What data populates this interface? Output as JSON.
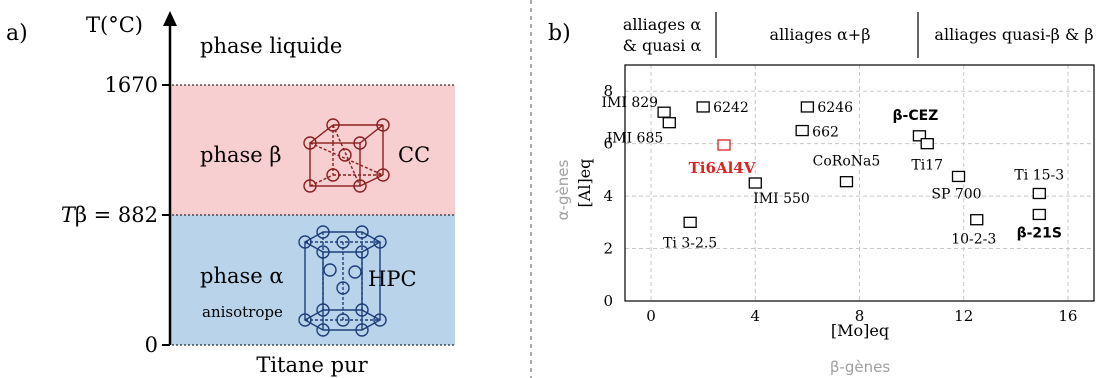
{
  "left": {
    "panel_label": "a)",
    "y_axis_label": "T(°C)",
    "ticks": {
      "t1670": "1670",
      "tbeta": "𝑇β = 882",
      "t0": "0"
    },
    "x_label": "Titane pur",
    "liquid": {
      "label": "phase liquide"
    },
    "beta": {
      "label": "phase β",
      "structure": "CC",
      "color": "#f8cfd1"
    },
    "alpha": {
      "label": "phase α",
      "sublabel": "anisotrope",
      "structure": "HPC",
      "color": "#b9d3eb"
    }
  },
  "right": {
    "panel_label": "b)",
    "header": {
      "col1_line1": "alliages α",
      "col1_line2": "& quasi α",
      "col2": "alliages α+β",
      "col3": "alliages quasi-β & β"
    },
    "side_label": "α-gènes",
    "bottom_label": "β-gènes"
  },
  "chart_data": {
    "type": "scatter",
    "xlabel": "[Mo]eq",
    "ylabel": "[Al]eq",
    "xlim": [
      -1,
      17
    ],
    "ylim": [
      0,
      9
    ],
    "xticks": [
      "0",
      "4",
      "8",
      "12",
      "16"
    ],
    "yticks": [
      "0",
      "2",
      "4",
      "6",
      "8"
    ],
    "grid": true,
    "points": [
      {
        "label": "IMI 829",
        "x": 0.5,
        "y": 7.2
      },
      {
        "label": "IMI 685",
        "x": 0.7,
        "y": 6.8
      },
      {
        "label": "6242",
        "x": 2.0,
        "y": 7.4
      },
      {
        "label": "Ti6Al4V",
        "x": 2.8,
        "y": 5.95,
        "highlight": "#e02020"
      },
      {
        "label": "6246",
        "x": 6.0,
        "y": 7.4
      },
      {
        "label": "662",
        "x": 5.8,
        "y": 6.5
      },
      {
        "label": "IMI 550",
        "x": 4.0,
        "y": 4.5
      },
      {
        "label": "Ti 3-2.5",
        "x": 1.5,
        "y": 3.0
      },
      {
        "label": "CoRoNa5",
        "x": 7.5,
        "y": 4.55
      },
      {
        "label": "β-CEZ",
        "x": 10.3,
        "y": 6.3
      },
      {
        "label": "Ti17",
        "x": 10.6,
        "y": 6.0
      },
      {
        "label": "SP 700",
        "x": 11.8,
        "y": 4.75
      },
      {
        "label": "10-2-3",
        "x": 12.5,
        "y": 3.1
      },
      {
        "label": "Ti 15-3",
        "x": 14.9,
        "y": 4.1
      },
      {
        "label": "β-21S",
        "x": 14.9,
        "y": 3.3
      }
    ]
  }
}
